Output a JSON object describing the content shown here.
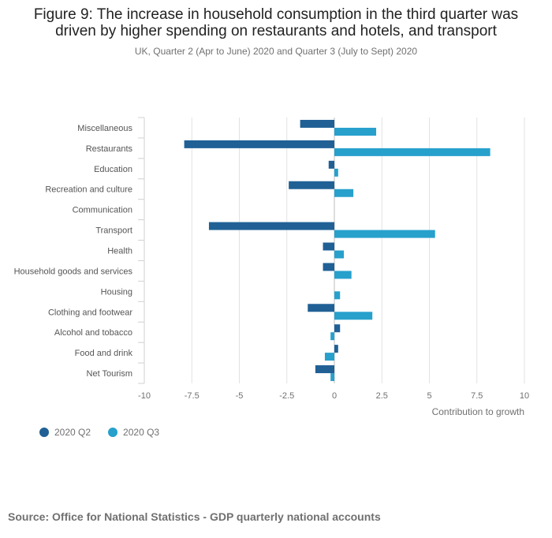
{
  "header": {
    "title_line1": "Figure 9: The increase in household consumption in the third quarter was",
    "title_line2": "driven by higher spending on restaurants and hotels, and transport",
    "subtitle": "UK, Quarter 2 (Apr to June) 2020 and Quarter 3 (July to Sept) 2020"
  },
  "chart_data": {
    "type": "bar",
    "orientation": "horizontal",
    "title": "Figure 9: The increase in household consumption in the third quarter was driven by higher spending on restaurants and hotels, and transport",
    "subtitle": "UK, Quarter 2 (Apr to June) 2020 and Quarter 3 (July to Sept) 2020",
    "xlabel": "Contribution to growth",
    "ylabel": "",
    "xlim": [
      -10,
      10
    ],
    "xticks": [
      -10,
      -7.5,
      -5,
      -2.5,
      0,
      2.5,
      5,
      7.5,
      10
    ],
    "xtick_labels": [
      "-10",
      "-7.5",
      "-5",
      "-2.5",
      "0",
      "2.5",
      "5",
      "7.5",
      "10"
    ],
    "categories": [
      "Miscellaneous",
      "Restaurants",
      "Education",
      "Recreation and culture",
      "Communication",
      "Transport",
      "Health",
      "Household goods and services",
      "Housing",
      "Clothing and footwear",
      "Alcohol and tobacco",
      "Food and drink",
      "Net Tourism"
    ],
    "series": [
      {
        "name": "2020 Q2",
        "color": "#206095",
        "values": [
          -1.8,
          -7.9,
          -0.3,
          -2.4,
          0.0,
          -6.6,
          -0.6,
          -0.6,
          0.0,
          -1.4,
          0.3,
          0.2,
          -1.0
        ]
      },
      {
        "name": "2020 Q3",
        "color": "#27a0cc",
        "values": [
          2.2,
          8.2,
          0.2,
          1.0,
          0.0,
          5.3,
          0.5,
          0.9,
          0.3,
          2.0,
          -0.2,
          -0.5,
          -0.2
        ]
      }
    ],
    "legend_position": "bottom-left",
    "grid": true
  },
  "legend": {
    "q2_label": "2020 Q2",
    "q3_label": "2020 Q3",
    "q2_color": "#206095",
    "q3_color": "#27a0cc"
  },
  "footer": {
    "source": "Source: Office for National Statistics - GDP quarterly national accounts"
  }
}
